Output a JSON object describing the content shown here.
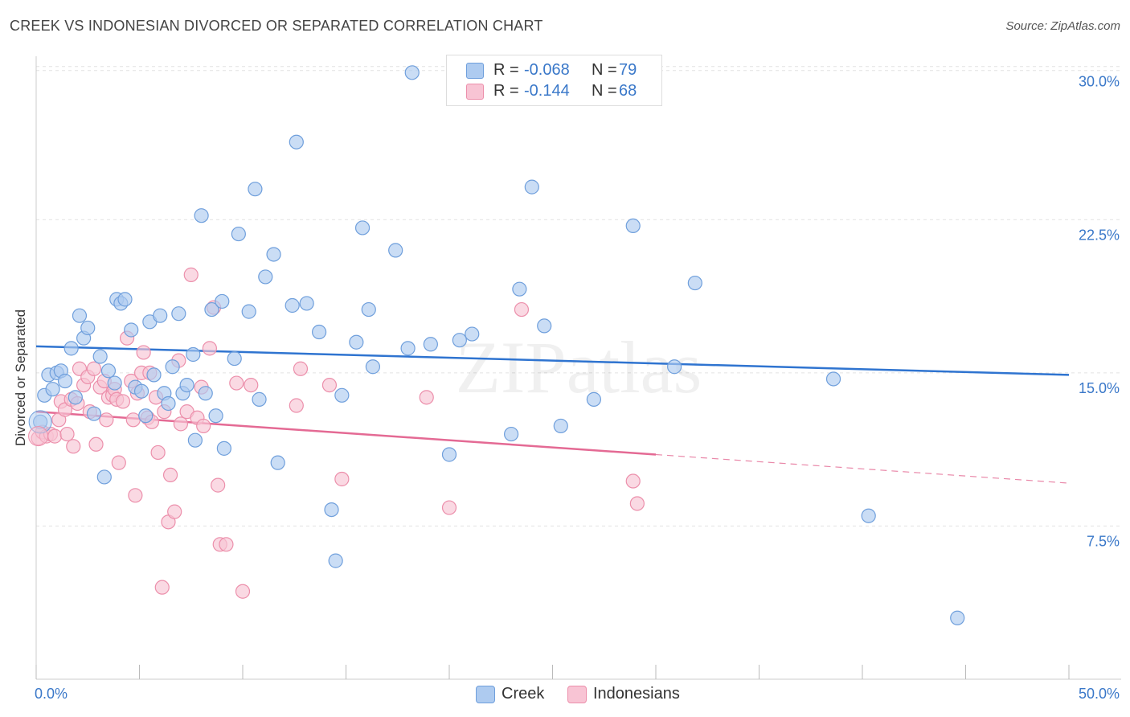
{
  "title": "CREEK VS INDONESIAN DIVORCED OR SEPARATED CORRELATION CHART",
  "source": "Source: ZipAtlas.com",
  "watermark": "ZIPatlas",
  "legend_top": {
    "rows": [
      {
        "r_label": "R =",
        "r_value": "-0.068",
        "n_label": "N =",
        "n_value": "79"
      },
      {
        "r_label": "R =",
        "r_value": "-0.144",
        "n_label": "N =",
        "n_value": "68"
      }
    ]
  },
  "legend_bottom": {
    "items": [
      "Creek",
      "Indonesians"
    ]
  },
  "colors": {
    "creek_fill": "#aecbf0",
    "creek_stroke": "#6f9fdc",
    "creek_line": "#2f74d0",
    "indo_fill": "#f8c4d4",
    "indo_stroke": "#ec8fab",
    "indo_line": "#e46a94",
    "axis_label": "#3a78c9",
    "grid": "#e2e2e2"
  },
  "chart_data": {
    "type": "scatter",
    "title": "CREEK VS INDONESIAN DIVORCED OR SEPARATED CORRELATION CHART",
    "xlabel": "",
    "ylabel": "Divorced or Separated",
    "xlim": [
      0,
      50
    ],
    "ylim": [
      0,
      30.5
    ],
    "x_tick_labels": [
      "0.0%",
      "50.0%"
    ],
    "y_ticks": [
      7.5,
      15.0,
      22.5,
      30.0
    ],
    "y_tick_labels": [
      "7.5%",
      "15.0%",
      "22.5%",
      "30.0%"
    ],
    "grid": true,
    "legend_placement": "top-center",
    "series": [
      {
        "name": "Creek",
        "r": -0.068,
        "n": 79,
        "trend": {
          "x0": 0,
          "y0": 16.3,
          "x1": 50,
          "y1": 14.9
        },
        "points": [
          [
            0.2,
            12.6
          ],
          [
            0.4,
            13.9
          ],
          [
            0.6,
            14.9
          ],
          [
            0.8,
            14.2
          ],
          [
            1.0,
            15.0
          ],
          [
            1.2,
            15.1
          ],
          [
            1.4,
            14.6
          ],
          [
            1.7,
            16.2
          ],
          [
            1.9,
            13.8
          ],
          [
            2.1,
            17.8
          ],
          [
            2.3,
            16.7
          ],
          [
            2.5,
            17.2
          ],
          [
            2.8,
            13.0
          ],
          [
            3.1,
            15.8
          ],
          [
            3.3,
            9.9
          ],
          [
            3.5,
            15.1
          ],
          [
            3.8,
            14.5
          ],
          [
            3.9,
            18.6
          ],
          [
            4.1,
            18.4
          ],
          [
            4.3,
            18.6
          ],
          [
            4.6,
            17.1
          ],
          [
            4.8,
            14.3
          ],
          [
            5.1,
            14.1
          ],
          [
            5.3,
            12.9
          ],
          [
            5.5,
            17.5
          ],
          [
            5.7,
            14.9
          ],
          [
            6.0,
            17.8
          ],
          [
            6.2,
            14.0
          ],
          [
            6.4,
            13.5
          ],
          [
            6.6,
            15.3
          ],
          [
            6.9,
            17.9
          ],
          [
            7.1,
            14.0
          ],
          [
            7.3,
            14.4
          ],
          [
            7.6,
            15.9
          ],
          [
            7.7,
            11.7
          ],
          [
            8.0,
            22.7
          ],
          [
            8.2,
            14.0
          ],
          [
            8.5,
            18.1
          ],
          [
            8.7,
            12.9
          ],
          [
            9.0,
            18.5
          ],
          [
            9.1,
            11.3
          ],
          [
            9.6,
            15.7
          ],
          [
            9.8,
            21.8
          ],
          [
            10.3,
            18.0
          ],
          [
            10.6,
            24.0
          ],
          [
            10.8,
            13.7
          ],
          [
            11.1,
            19.7
          ],
          [
            11.5,
            20.8
          ],
          [
            11.7,
            10.6
          ],
          [
            12.4,
            18.3
          ],
          [
            12.6,
            26.3
          ],
          [
            13.1,
            18.4
          ],
          [
            13.7,
            17.0
          ],
          [
            14.3,
            8.3
          ],
          [
            14.5,
            5.8
          ],
          [
            14.8,
            13.9
          ],
          [
            15.5,
            16.5
          ],
          [
            15.8,
            22.1
          ],
          [
            16.1,
            18.1
          ],
          [
            16.3,
            15.3
          ],
          [
            17.4,
            21.0
          ],
          [
            18.0,
            16.2
          ],
          [
            18.2,
            29.7
          ],
          [
            19.1,
            16.4
          ],
          [
            20.0,
            11.0
          ],
          [
            20.5,
            16.6
          ],
          [
            21.1,
            16.9
          ],
          [
            23.0,
            12.0
          ],
          [
            23.4,
            19.1
          ],
          [
            24.0,
            24.1
          ],
          [
            24.6,
            17.3
          ],
          [
            25.4,
            12.4
          ],
          [
            27.0,
            13.7
          ],
          [
            28.9,
            22.2
          ],
          [
            30.9,
            15.3
          ],
          [
            31.9,
            19.4
          ],
          [
            38.6,
            14.7
          ],
          [
            40.3,
            8.0
          ],
          [
            44.6,
            3.0
          ]
        ]
      },
      {
        "name": "Indonesians",
        "r": -0.144,
        "n": 68,
        "trend": {
          "x0": 0,
          "y0": 13.1,
          "x1": 30,
          "y1": 11.0
        },
        "trend_dashed": {
          "x0": 30,
          "y0": 11.0,
          "x1": 50,
          "y1": 9.6
        },
        "points": [
          [
            0.1,
            11.8
          ],
          [
            0.3,
            12.1
          ],
          [
            0.5,
            11.9
          ],
          [
            0.7,
            12.0
          ],
          [
            0.9,
            11.9
          ],
          [
            1.1,
            12.7
          ],
          [
            1.2,
            13.6
          ],
          [
            1.4,
            13.2
          ],
          [
            1.5,
            12.0
          ],
          [
            1.7,
            13.7
          ],
          [
            1.8,
            11.4
          ],
          [
            2.0,
            13.5
          ],
          [
            2.1,
            15.2
          ],
          [
            2.3,
            14.4
          ],
          [
            2.5,
            14.8
          ],
          [
            2.6,
            13.1
          ],
          [
            2.8,
            15.2
          ],
          [
            2.9,
            11.5
          ],
          [
            3.1,
            14.3
          ],
          [
            3.3,
            14.6
          ],
          [
            3.4,
            12.7
          ],
          [
            3.5,
            13.8
          ],
          [
            3.7,
            13.9
          ],
          [
            3.8,
            14.2
          ],
          [
            3.9,
            13.7
          ],
          [
            4.0,
            10.6
          ],
          [
            4.2,
            13.6
          ],
          [
            4.4,
            16.7
          ],
          [
            4.6,
            14.6
          ],
          [
            4.7,
            12.7
          ],
          [
            4.8,
            9.0
          ],
          [
            4.9,
            14.0
          ],
          [
            5.1,
            15.0
          ],
          [
            5.2,
            16.0
          ],
          [
            5.4,
            12.8
          ],
          [
            5.5,
            15.0
          ],
          [
            5.6,
            12.6
          ],
          [
            5.8,
            13.8
          ],
          [
            5.9,
            11.1
          ],
          [
            6.1,
            4.5
          ],
          [
            6.2,
            13.1
          ],
          [
            6.4,
            7.7
          ],
          [
            6.5,
            10.0
          ],
          [
            6.7,
            8.2
          ],
          [
            6.9,
            15.6
          ],
          [
            7.0,
            12.5
          ],
          [
            7.3,
            13.1
          ],
          [
            7.5,
            19.8
          ],
          [
            7.8,
            12.8
          ],
          [
            8.0,
            14.3
          ],
          [
            8.1,
            12.4
          ],
          [
            8.4,
            16.2
          ],
          [
            8.6,
            18.2
          ],
          [
            8.8,
            9.5
          ],
          [
            8.9,
            6.6
          ],
          [
            9.2,
            6.6
          ],
          [
            9.7,
            14.5
          ],
          [
            10.0,
            4.3
          ],
          [
            10.4,
            14.4
          ],
          [
            12.6,
            13.4
          ],
          [
            12.8,
            15.2
          ],
          [
            14.2,
            14.4
          ],
          [
            14.8,
            9.8
          ],
          [
            18.9,
            13.8
          ],
          [
            20.0,
            8.4
          ],
          [
            23.5,
            18.1
          ],
          [
            28.9,
            9.7
          ],
          [
            29.1,
            8.6
          ]
        ]
      }
    ]
  }
}
